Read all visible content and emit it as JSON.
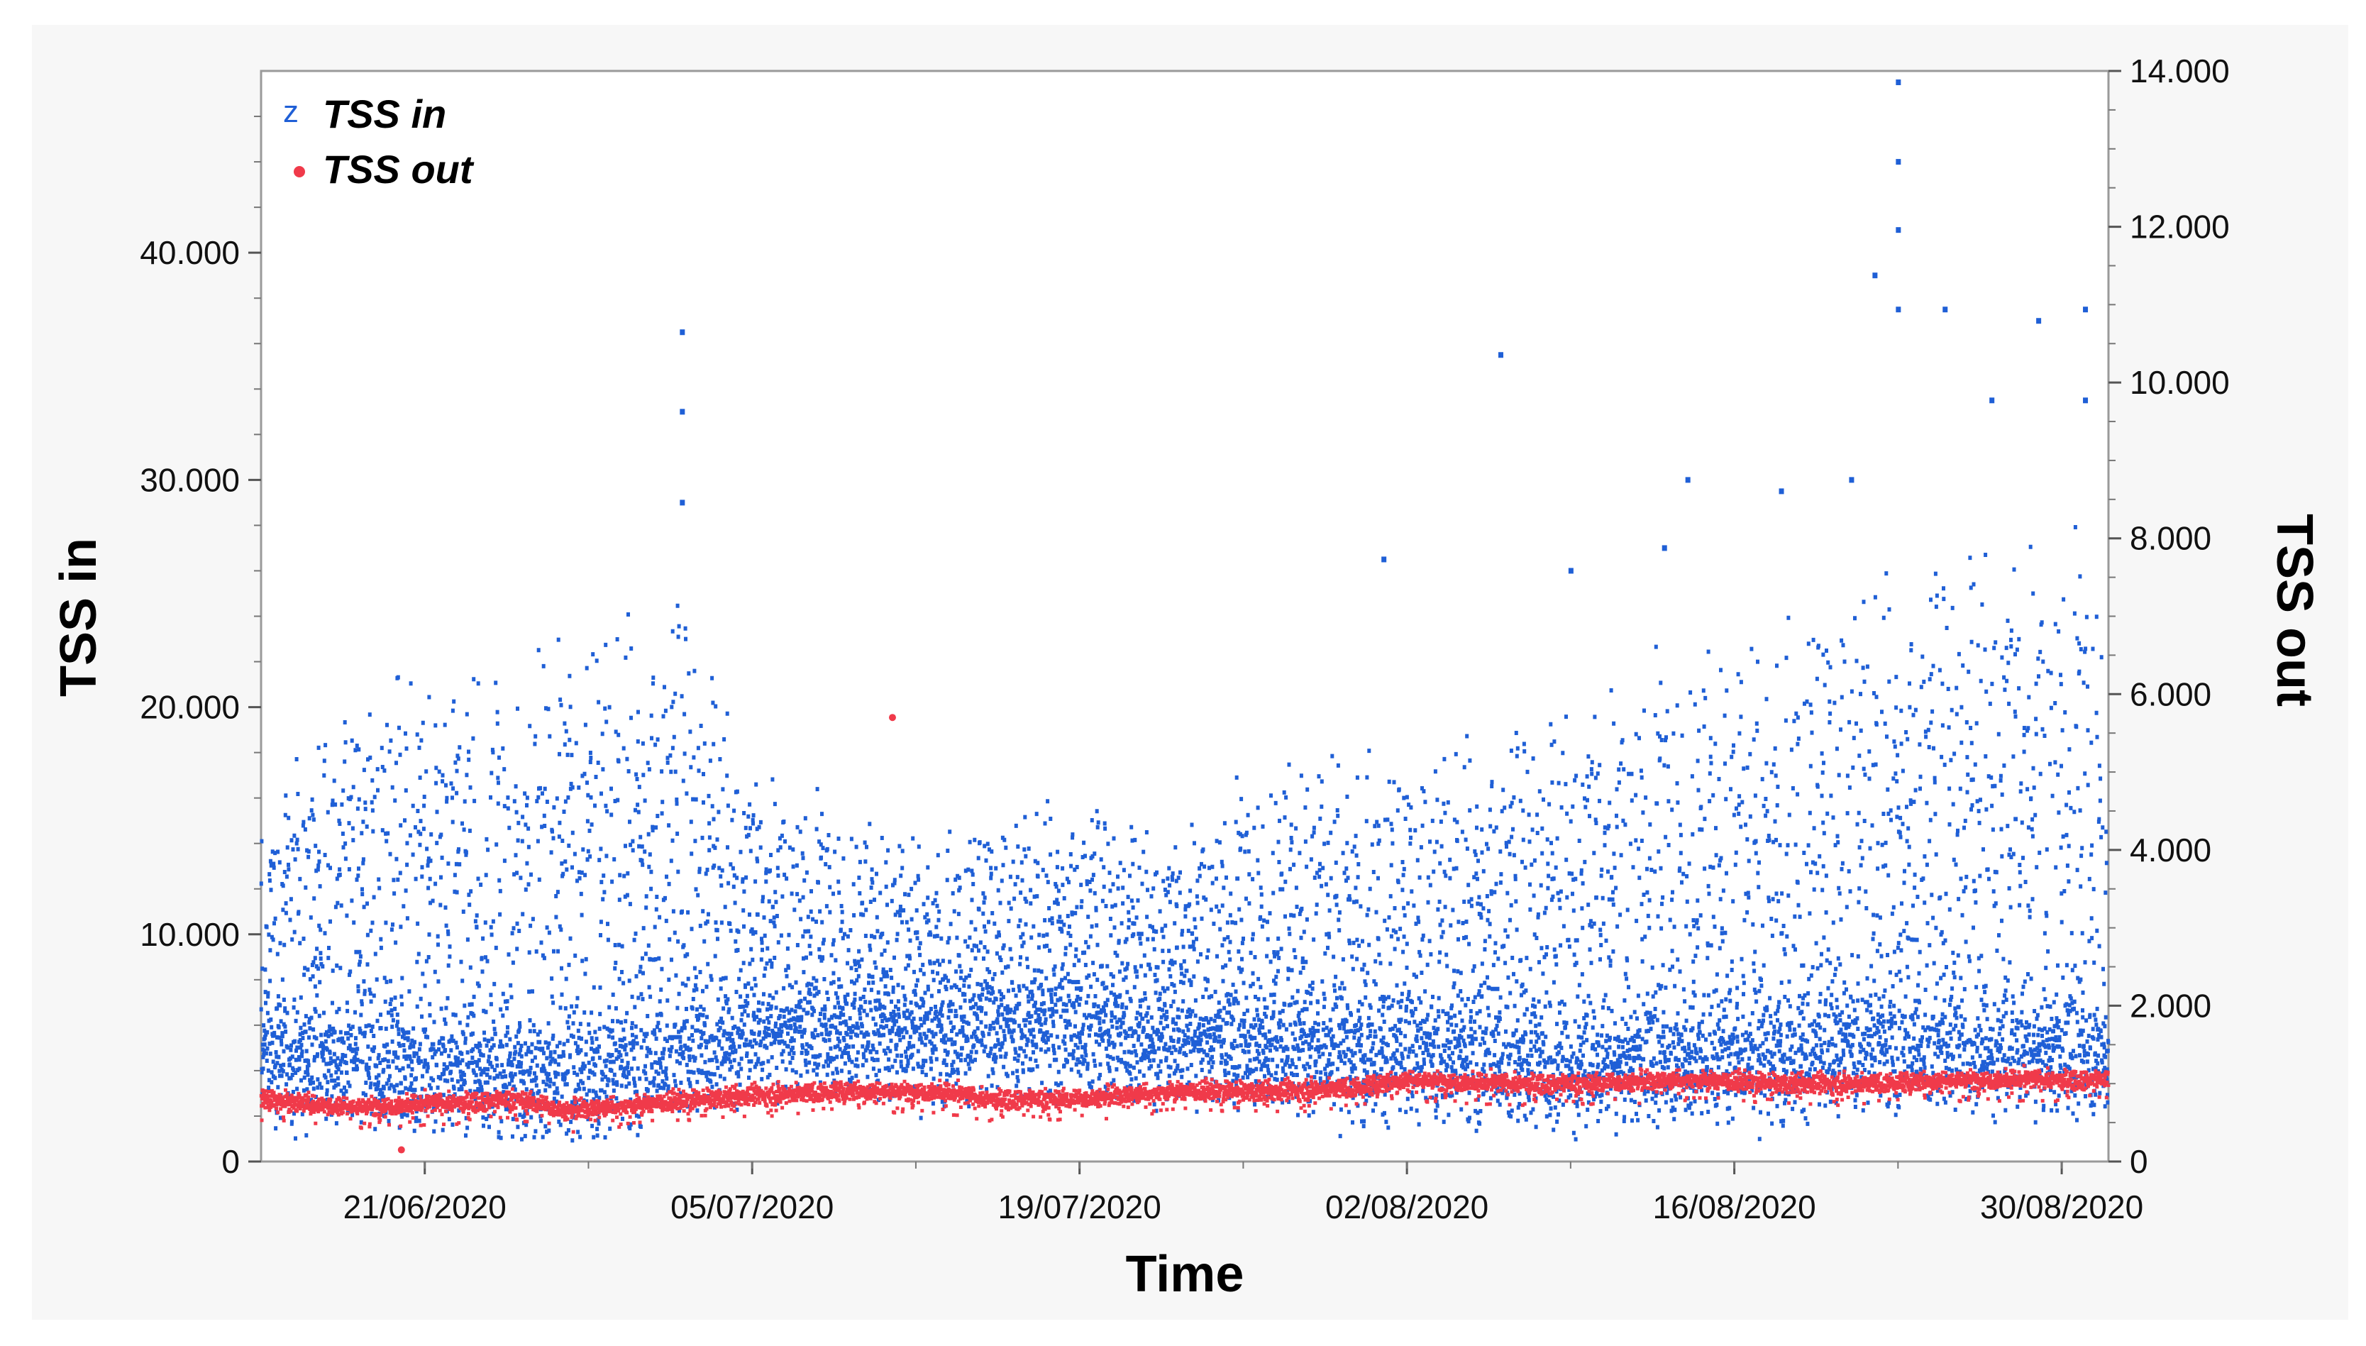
{
  "chart_data": {
    "type": "scatter",
    "xlabel": "Time",
    "ylabel_left": "TSS in",
    "ylabel_right": "TSS out",
    "x_range": [
      "14/06/2020",
      "01/09/2020"
    ],
    "x_tick_labels": [
      "21/06/2020",
      "05/07/2020",
      "19/07/2020",
      "02/08/2020",
      "16/08/2020",
      "30/08/2020"
    ],
    "y_left_range": [
      0,
      48000
    ],
    "y_left_tick_labels": [
      "0",
      "10.000",
      "20.000",
      "30.000",
      "40.000"
    ],
    "y_left_ticks": [
      0,
      10000,
      20000,
      30000,
      40000
    ],
    "y_right_range": [
      0,
      14000
    ],
    "y_right_tick_labels": [
      "0",
      "2.000",
      "4.000",
      "6.000",
      "8.000",
      "10.000",
      "12.000",
      "14.000"
    ],
    "y_right_ticks": [
      0,
      2000,
      4000,
      6000,
      8000,
      10000,
      12000,
      14000
    ],
    "grid": false,
    "legend_position": "top-left",
    "legend_markers": {
      "TSS in": "z",
      "TSS out": "•"
    },
    "colors": {
      "TSS in": "#1f5fd6",
      "TSS out": "#f03a4a"
    },
    "series": [
      {
        "name": "TSS in",
        "axis": "left",
        "description_points": [
          [
            "14/06/2020",
            15000
          ],
          [
            "17/06/2020",
            19000
          ],
          [
            "21/06/2020",
            21000
          ],
          [
            "25/06/2020",
            21000
          ],
          [
            "29/06/2020",
            23000
          ],
          [
            "02/07/2020",
            25000
          ],
          [
            "05/07/2020",
            17000
          ],
          [
            "09/07/2020",
            15000
          ],
          [
            "13/07/2020",
            14000
          ],
          [
            "19/07/2020",
            16000
          ],
          [
            "23/07/2020",
            14000
          ],
          [
            "27/07/2020",
            17000
          ],
          [
            "30/07/2020",
            18000
          ],
          [
            "02/08/2020",
            17000
          ],
          [
            "06/08/2020",
            19000
          ],
          [
            "10/08/2020",
            20000
          ],
          [
            "14/08/2020",
            22000
          ],
          [
            "18/08/2020",
            23000
          ],
          [
            "22/08/2020",
            25000
          ],
          [
            "26/08/2020",
            27000
          ],
          [
            "01/09/2020",
            26000
          ]
        ],
        "baseline_points": [
          [
            "14/06/2020",
            4500
          ],
          [
            "21/06/2020",
            4000
          ],
          [
            "28/06/2020",
            3500
          ],
          [
            "05/07/2020",
            5500
          ],
          [
            "12/07/2020",
            5500
          ],
          [
            "19/07/2020",
            5500
          ],
          [
            "26/07/2020",
            5000
          ],
          [
            "02/08/2020",
            4500
          ],
          [
            "09/08/2020",
            4000
          ],
          [
            "16/08/2020",
            4500
          ],
          [
            "23/08/2020",
            5000
          ],
          [
            "01/09/2020",
            4500
          ]
        ],
        "spikes": [
          [
            "02/07/2020",
            36500
          ],
          [
            "02/07/2020",
            33000
          ],
          [
            "02/07/2020",
            29000
          ],
          [
            "06/08/2020",
            35500
          ],
          [
            "09/08/2020",
            26000
          ],
          [
            "01/08/2020",
            26500
          ],
          [
            "13/08/2020",
            27000
          ],
          [
            "14/08/2020",
            30000
          ],
          [
            "18/08/2020",
            29500
          ],
          [
            "21/08/2020",
            30000
          ],
          [
            "23/08/2020",
            47500
          ],
          [
            "23/08/2020",
            44000
          ],
          [
            "23/08/2020",
            41000
          ],
          [
            "23/08/2020",
            37500
          ],
          [
            "22/08/2020",
            39000
          ],
          [
            "25/08/2020",
            37500
          ],
          [
            "29/08/2020",
            37000
          ],
          [
            "31/08/2020",
            37500
          ],
          [
            "27/08/2020",
            33500
          ],
          [
            "31/08/2020",
            33500
          ]
        ]
      },
      {
        "name": "TSS out",
        "axis": "right",
        "values": [
          [
            "14/06/2020",
            800
          ],
          [
            "18/06/2020",
            700
          ],
          [
            "22/06/2020",
            750
          ],
          [
            "25/06/2020",
            800
          ],
          [
            "27/06/2020",
            650
          ],
          [
            "01/07/2020",
            750
          ],
          [
            "05/07/2020",
            850
          ],
          [
            "09/07/2020",
            900
          ],
          [
            "13/07/2020",
            900
          ],
          [
            "15/07/2020",
            800
          ],
          [
            "19/07/2020",
            800
          ],
          [
            "23/07/2020",
            900
          ],
          [
            "27/07/2020",
            900
          ],
          [
            "31/07/2020",
            950
          ],
          [
            "02/08/2020",
            1050
          ],
          [
            "06/08/2020",
            1000
          ],
          [
            "10/08/2020",
            1000
          ],
          [
            "14/08/2020",
            1050
          ],
          [
            "18/08/2020",
            1000
          ],
          [
            "22/08/2020",
            1000
          ],
          [
            "26/08/2020",
            1050
          ],
          [
            "01/09/2020",
            1050
          ]
        ],
        "outliers": [
          [
            "11/07/2020",
            5700
          ],
          [
            "20/06/2020",
            150
          ]
        ]
      }
    ]
  }
}
